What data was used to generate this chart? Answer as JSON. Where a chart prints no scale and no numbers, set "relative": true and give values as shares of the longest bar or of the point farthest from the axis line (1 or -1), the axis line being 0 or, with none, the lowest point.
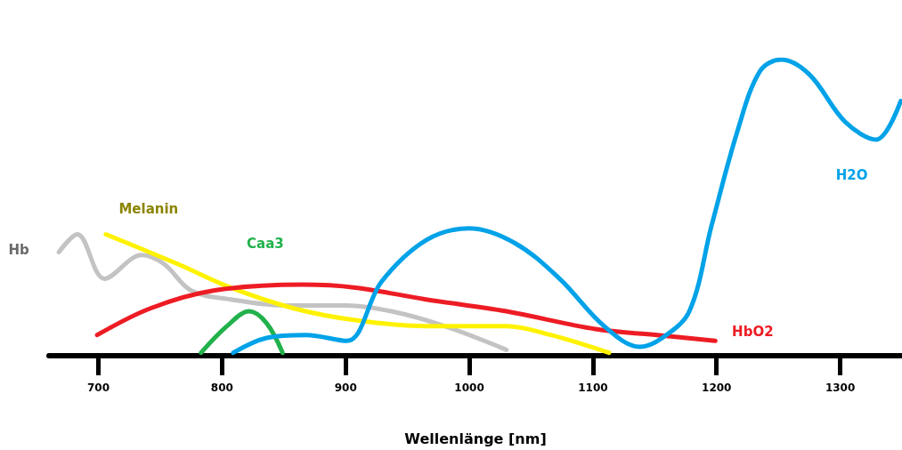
{
  "chart_data": {
    "type": "line",
    "xlabel": "Wellenlänge [nm]",
    "relative": true,
    "xlim": [
      660,
      1350
    ],
    "xticks": [
      700,
      800,
      900,
      1000,
      1100,
      1200,
      1300
    ],
    "grid": false,
    "legend": false,
    "marker": "none",
    "line_style": "solid",
    "series": [
      {
        "name": "Hb",
        "color": "#c3c3c3",
        "x": [
          668,
          683,
          705,
          735,
          753,
          775,
          807,
          850,
          901,
          937,
          980,
          1030
        ],
        "values": [
          0.35,
          0.41,
          0.26,
          0.34,
          0.31,
          0.22,
          0.19,
          0.17,
          0.17,
          0.15,
          0.1,
          0.02
        ]
      },
      {
        "name": "Melanin",
        "color": "#fff200",
        "x": [
          706,
          764,
          807,
          858,
          908,
          965,
          1030,
          1066,
          1113
        ],
        "values": [
          0.41,
          0.31,
          0.23,
          0.16,
          0.12,
          0.1,
          0.1,
          0.07,
          0.01
        ]
      },
      {
        "name": "Caa3",
        "color": "#22b14c",
        "x": [
          783,
          804,
          822,
          836,
          849
        ],
        "values": [
          0.01,
          0.1,
          0.15,
          0.11,
          0.01
        ]
      },
      {
        "name": "HbO2",
        "color": "#ed1c24",
        "x": [
          699,
          742,
          793,
          865,
          908,
          965,
          1030,
          1102,
          1152,
          1199
        ],
        "values": [
          0.07,
          0.16,
          0.22,
          0.24,
          0.23,
          0.19,
          0.15,
          0.09,
          0.07,
          0.05
        ]
      },
      {
        "name": "H2O",
        "color": "#00a2e8",
        "x": [
          809,
          836,
          868,
          901,
          929,
          965,
          1000,
          1037,
          1073,
          1109,
          1138,
          1156,
          1178,
          1196,
          1217,
          1235,
          1252,
          1275,
          1304,
          1329,
          1349
        ],
        "values": [
          0.01,
          0.06,
          0.07,
          0.05,
          0.25,
          0.39,
          0.43,
          0.38,
          0.26,
          0.1,
          0.03,
          0.06,
          0.15,
          0.44,
          0.76,
          0.96,
          1.0,
          0.95,
          0.79,
          0.73,
          0.86
        ]
      }
    ]
  }
}
